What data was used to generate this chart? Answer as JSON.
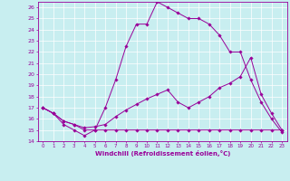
{
  "xlabel": "Windchill (Refroidissement éolien,°C)",
  "bg_color": "#c8eef0",
  "grid_color": "#ffffff",
  "line_color": "#990099",
  "xlim": [
    -0.5,
    23.5
  ],
  "ylim": [
    14,
    26.5
  ],
  "yticks": [
    14,
    15,
    16,
    17,
    18,
    19,
    20,
    21,
    22,
    23,
    24,
    25,
    26
  ],
  "xticks": [
    0,
    1,
    2,
    3,
    4,
    5,
    6,
    7,
    8,
    9,
    10,
    11,
    12,
    13,
    14,
    15,
    16,
    17,
    18,
    19,
    20,
    21,
    22,
    23
  ],
  "series1_x": [
    0,
    1,
    2,
    3,
    4,
    5,
    6,
    7,
    8,
    9,
    10,
    11,
    12,
    13,
    14,
    15,
    16,
    17,
    18,
    19,
    20,
    21,
    22,
    23
  ],
  "series1_y": [
    17.0,
    16.5,
    15.5,
    15.0,
    14.5,
    15.0,
    17.0,
    19.5,
    22.5,
    24.5,
    24.5,
    26.5,
    26.0,
    25.5,
    25.0,
    25.0,
    24.5,
    23.5,
    22.0,
    22.0,
    19.5,
    17.5,
    16.0,
    14.8
  ],
  "series2_x": [
    0,
    1,
    2,
    3,
    4,
    5,
    6,
    7,
    8,
    9,
    10,
    11,
    12,
    13,
    14,
    15,
    16,
    17,
    18,
    19,
    20,
    21,
    22,
    23
  ],
  "series2_y": [
    17.0,
    16.5,
    15.8,
    15.5,
    15.0,
    15.0,
    15.0,
    15.0,
    15.0,
    15.0,
    15.0,
    15.0,
    15.0,
    15.0,
    15.0,
    15.0,
    15.0,
    15.0,
    15.0,
    15.0,
    15.0,
    15.0,
    15.0,
    15.0
  ],
  "series3_x": [
    0,
    1,
    2,
    3,
    4,
    5,
    6,
    7,
    8,
    9,
    10,
    11,
    12,
    13,
    14,
    15,
    16,
    17,
    18,
    19,
    20,
    21,
    22,
    23
  ],
  "series3_y": [
    17.0,
    16.5,
    15.8,
    15.5,
    15.2,
    15.3,
    15.5,
    16.2,
    16.8,
    17.3,
    17.8,
    18.2,
    18.6,
    17.5,
    17.0,
    17.5,
    18.0,
    18.8,
    19.2,
    19.8,
    21.5,
    18.2,
    16.5,
    15.0
  ]
}
